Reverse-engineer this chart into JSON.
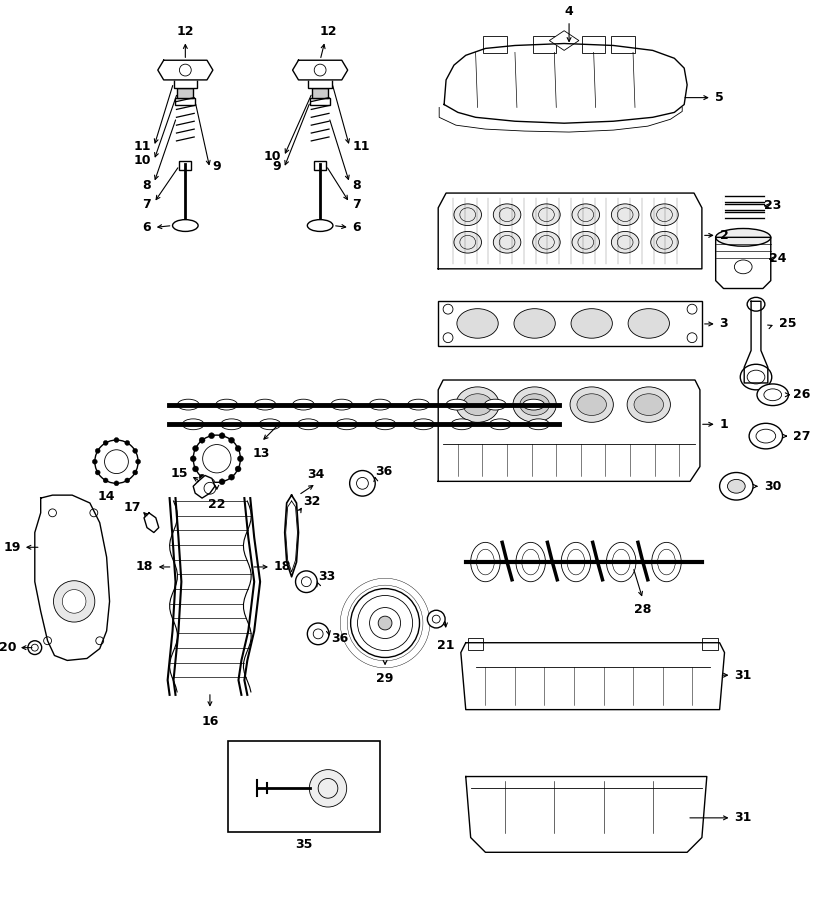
{
  "bg_color": "#ffffff",
  "line_color": "#000000",
  "fig_width": 8.18,
  "fig_height": 9.0,
  "dpi": 100,
  "fontsize_label": 9,
  "fontsize_num": 9,
  "lw_main": 1.0,
  "lw_detail": 0.6
}
